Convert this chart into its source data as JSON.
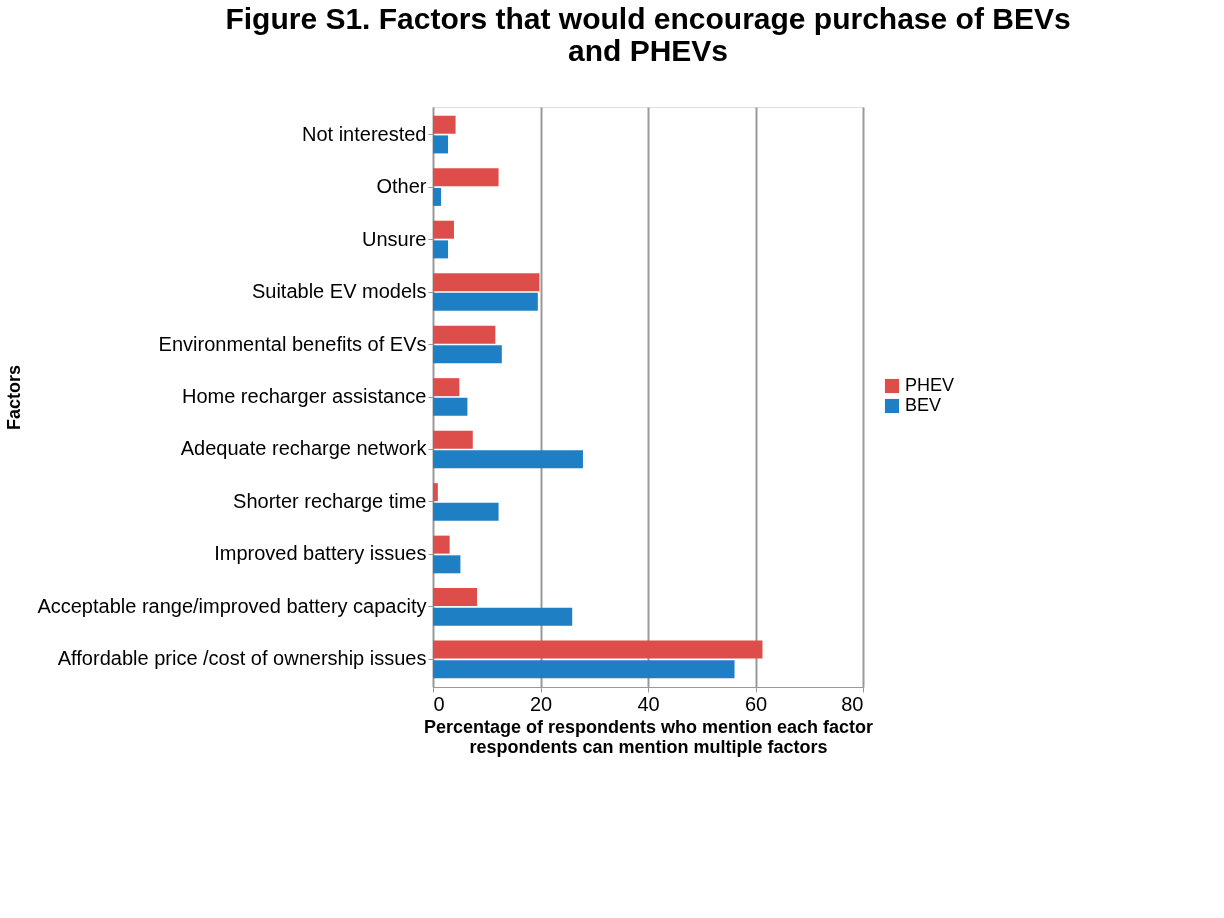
{
  "chart_data": {
    "type": "bar",
    "orientation": "horizontal",
    "title": "Figure S1. Factors that would encourage purchase of BEVs and PHEVs",
    "xlabel": "Percentage of respondents who mention each factor",
    "ylabel": "Factors",
    "annotations": [
      "respondents can mention multiple factors"
    ],
    "categories": [
      "Not interested",
      "Other",
      "Unsure",
      "Suitable EV models",
      "Environmental benefits of EVs",
      "Home recharger assistance",
      "Adequate recharge network",
      "Shorter recharge time",
      "Improved battery issues",
      "Acceptable range/improved battery capacity",
      "Affordable price /cost of ownership issues"
    ],
    "series": [
      {
        "name": "PHEV",
        "color": "#dd4e4a",
        "values": [
          4.2,
          12.2,
          3.9,
          19.8,
          11.6,
          4.9,
          7.4,
          0.9,
          3.1,
          8.2,
          61.3
        ]
      },
      {
        "name": "BEV",
        "color": "#1f7fc4",
        "values": [
          2.8,
          1.5,
          2.8,
          19.5,
          12.8,
          6.4,
          27.9,
          12.2,
          5.1,
          25.9,
          56.1
        ]
      }
    ],
    "xlim": [
      0,
      80
    ],
    "xticks": [
      0,
      20,
      40,
      60,
      80
    ],
    "grid": "x",
    "legend": "right"
  }
}
